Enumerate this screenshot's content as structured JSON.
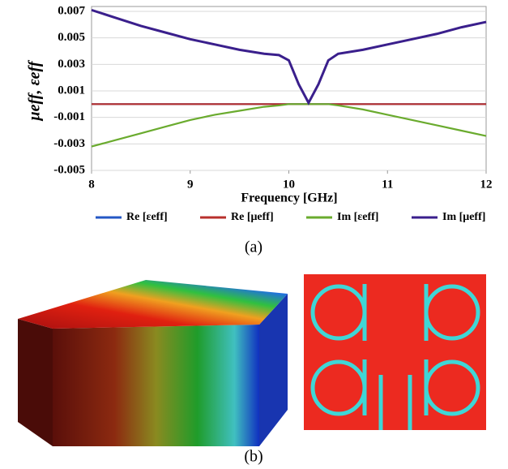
{
  "chart_data": {
    "type": "line",
    "y_label": "μeff, εeff",
    "x_label": "Frequency [GHz]",
    "x": [
      8,
      8.25,
      8.5,
      8.75,
      9,
      9.25,
      9.5,
      9.75,
      9.9,
      10,
      10.1,
      10.2,
      10.3,
      10.4,
      10.5,
      10.75,
      11,
      11.25,
      11.5,
      11.75,
      12
    ],
    "series": [
      {
        "name": "Re [εeff]",
        "color": "#2457c5",
        "values": [
          0,
          0,
          0,
          0,
          0,
          0,
          0,
          0,
          0,
          0,
          0,
          0,
          0,
          0,
          0,
          0,
          0,
          0,
          0,
          0,
          0
        ]
      },
      {
        "name": "Re [μeff]",
        "color": "#b8302c",
        "values": [
          0,
          0,
          0,
          0,
          0,
          0,
          0,
          0,
          0,
          0,
          0,
          0,
          0,
          0,
          0,
          0,
          0,
          0,
          0,
          0,
          0
        ]
      },
      {
        "name": "Im [εeff]",
        "color": "#6aab2e",
        "values": [
          -0.0032,
          -0.0027,
          -0.0022,
          -0.0017,
          -0.0012,
          -0.0008,
          -0.0005,
          -0.0002,
          -0.0001,
          0,
          0,
          0,
          0,
          0,
          -0.0001,
          -0.0004,
          -0.0008,
          -0.0012,
          -0.0016,
          -0.002,
          -0.0024
        ]
      },
      {
        "name": "Im [μeff]",
        "color": "#3a1f8c",
        "values": [
          0.0071,
          0.0065,
          0.0059,
          0.0054,
          0.0049,
          0.0045,
          0.0041,
          0.0038,
          0.0037,
          0.0033,
          0.0015,
          0.0001,
          0.0015,
          0.0033,
          0.0038,
          0.0041,
          0.0045,
          0.0049,
          0.0053,
          0.0058,
          0.0062
        ]
      }
    ],
    "xlim": [
      8,
      12
    ],
    "xticks": [
      8,
      9,
      10,
      11,
      12
    ],
    "ylim": [
      -0.005,
      0.007
    ],
    "yticks": [
      -0.005,
      -0.003,
      -0.001,
      0.001,
      0.003,
      0.005,
      0.007
    ],
    "grid": true,
    "legend": "bottom"
  },
  "captions": [
    "(a)",
    "(b)"
  ]
}
